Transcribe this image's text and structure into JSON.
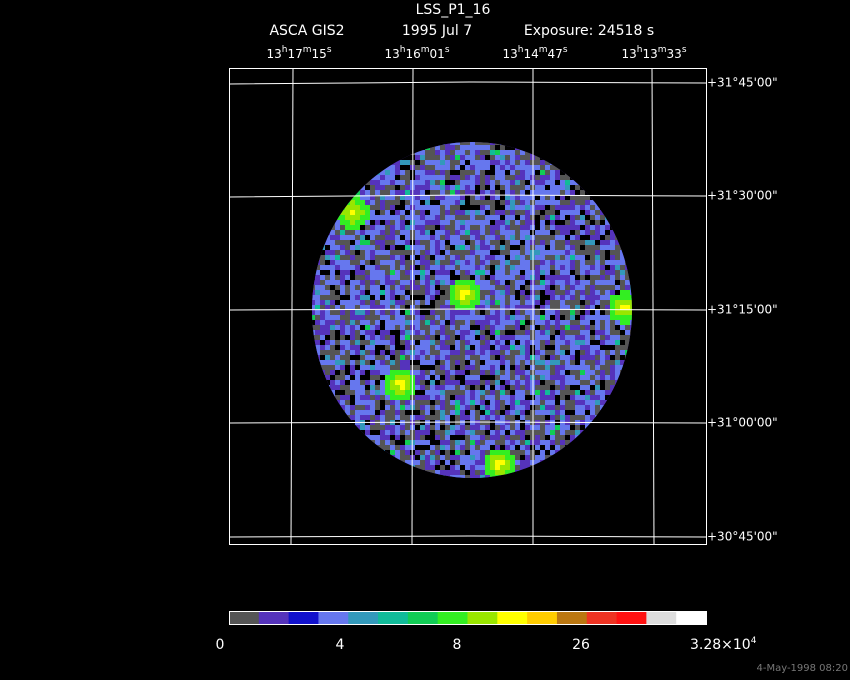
{
  "header": {
    "title": "LSS_P1_16",
    "instrument": "ASCA GIS2",
    "date": "1995 Jul  7",
    "exposure": "Exposure: 24518 s"
  },
  "ra_labels": [
    [
      "13",
      "h",
      "17",
      "m",
      "15",
      "s"
    ],
    [
      "13",
      "h",
      "16",
      "m",
      "01",
      "s"
    ],
    [
      "13",
      "h",
      "14",
      "m",
      "47",
      "s"
    ],
    [
      "13",
      "h",
      "13",
      "m",
      "33",
      "s"
    ]
  ],
  "dec_labels": [
    "+31°45'00\"",
    "+31°30'00\"",
    "+31°15'00\"",
    "+31°00'00\"",
    "+30°45'00\""
  ],
  "colorbar": {
    "colors": [
      "#555555",
      "#5533bb",
      "#1111cc",
      "#6677ee",
      "#3399bb",
      "#11bb99",
      "#11cc55",
      "#33ee22",
      "#99e600",
      "#ffff00",
      "#ffcc00",
      "#bb7711",
      "#ee3322",
      "#ff1111",
      "#dddddd",
      "#ffffff"
    ],
    "labels": [
      [
        "0"
      ],
      [
        "4"
      ],
      [
        "8"
      ],
      [
        "26"
      ],
      [
        "3.28×10",
        "4"
      ]
    ]
  },
  "timestamp": "4-May-1998 08:20"
}
